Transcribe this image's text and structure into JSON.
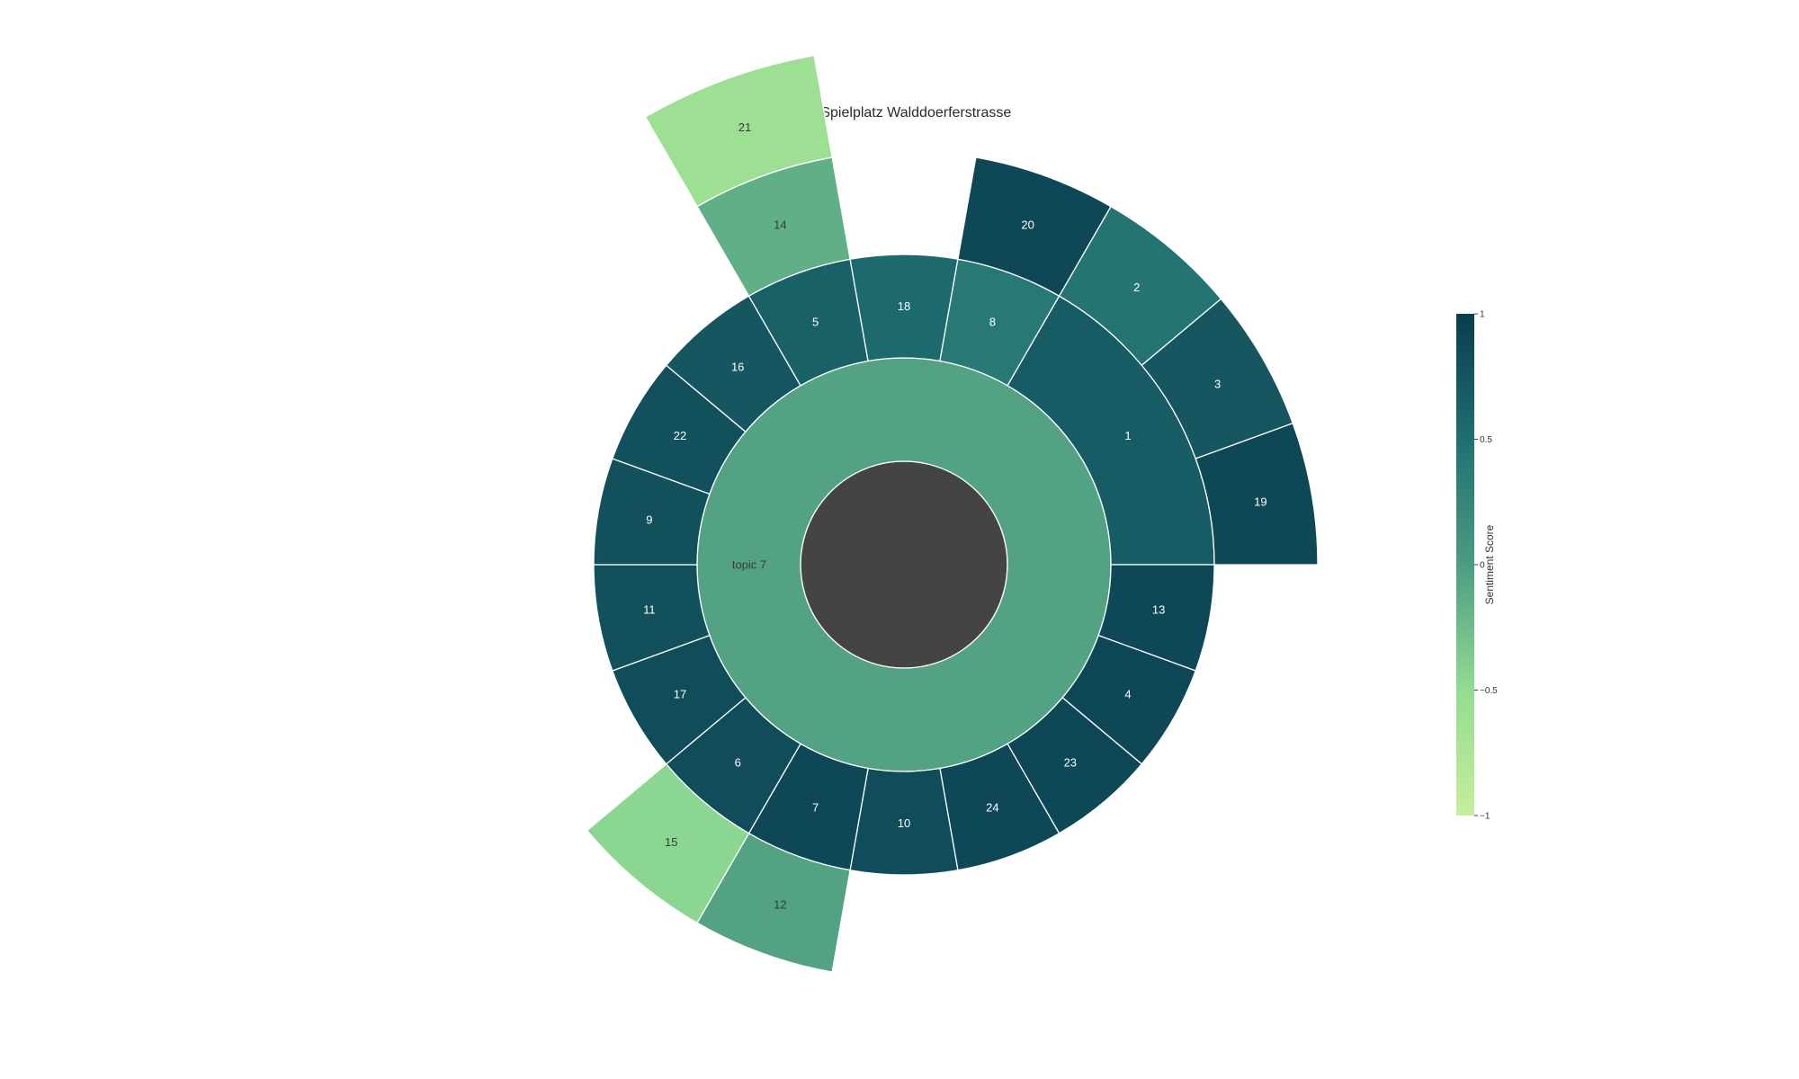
{
  "chart_data": {
    "type": "sunburst",
    "title": "53. Spielplatz Walddoerferstrasse",
    "center": {
      "label": "",
      "color": "#444444"
    },
    "topic": {
      "label": "topic 7",
      "score": -0.05
    },
    "segments": [
      {
        "label": "1",
        "score": 0.7,
        "children": [
          {
            "label": "19",
            "score": 0.9
          },
          {
            "label": "3",
            "score": 0.75
          },
          {
            "label": "2",
            "score": 0.45
          }
        ]
      },
      {
        "label": "13",
        "score": 0.9
      },
      {
        "label": "4",
        "score": 0.9
      },
      {
        "label": "23",
        "score": 0.9
      },
      {
        "label": "24",
        "score": 0.9
      },
      {
        "label": "10",
        "score": 0.85
      },
      {
        "label": "7",
        "score": 0.9,
        "children": [
          {
            "label": "12",
            "score": -0.05
          }
        ]
      },
      {
        "label": "6",
        "score": 0.85,
        "children": [
          {
            "label": "15",
            "score": -0.45
          }
        ]
      },
      {
        "label": "17",
        "score": 0.85
      },
      {
        "label": "11",
        "score": 0.8
      },
      {
        "label": "9",
        "score": 0.8
      },
      {
        "label": "22",
        "score": 0.8
      },
      {
        "label": "16",
        "score": 0.75
      },
      {
        "label": "5",
        "score": 0.65,
        "children": [
          {
            "label": "14",
            "score": -0.15,
            "children": [
              {
                "label": "21",
                "score": -0.6
              }
            ]
          }
        ]
      },
      {
        "label": "18",
        "score": 0.55
      },
      {
        "label": "8",
        "score": 0.4,
        "children": [
          {
            "label": "20",
            "score": 0.9
          }
        ]
      }
    ],
    "colorbar": {
      "title": "Sentiment Score",
      "range": [
        -1,
        1
      ],
      "ticks": [
        "1",
        "0.5",
        "0",
        "−0.5",
        "−1"
      ],
      "tick_values": [
        1,
        0.5,
        0,
        -0.5,
        -1
      ],
      "colorscale": [
        "#c7ee9a",
        "#92dc92",
        "#4c9c82",
        "#1f6f72",
        "#0a3d4e"
      ]
    }
  }
}
